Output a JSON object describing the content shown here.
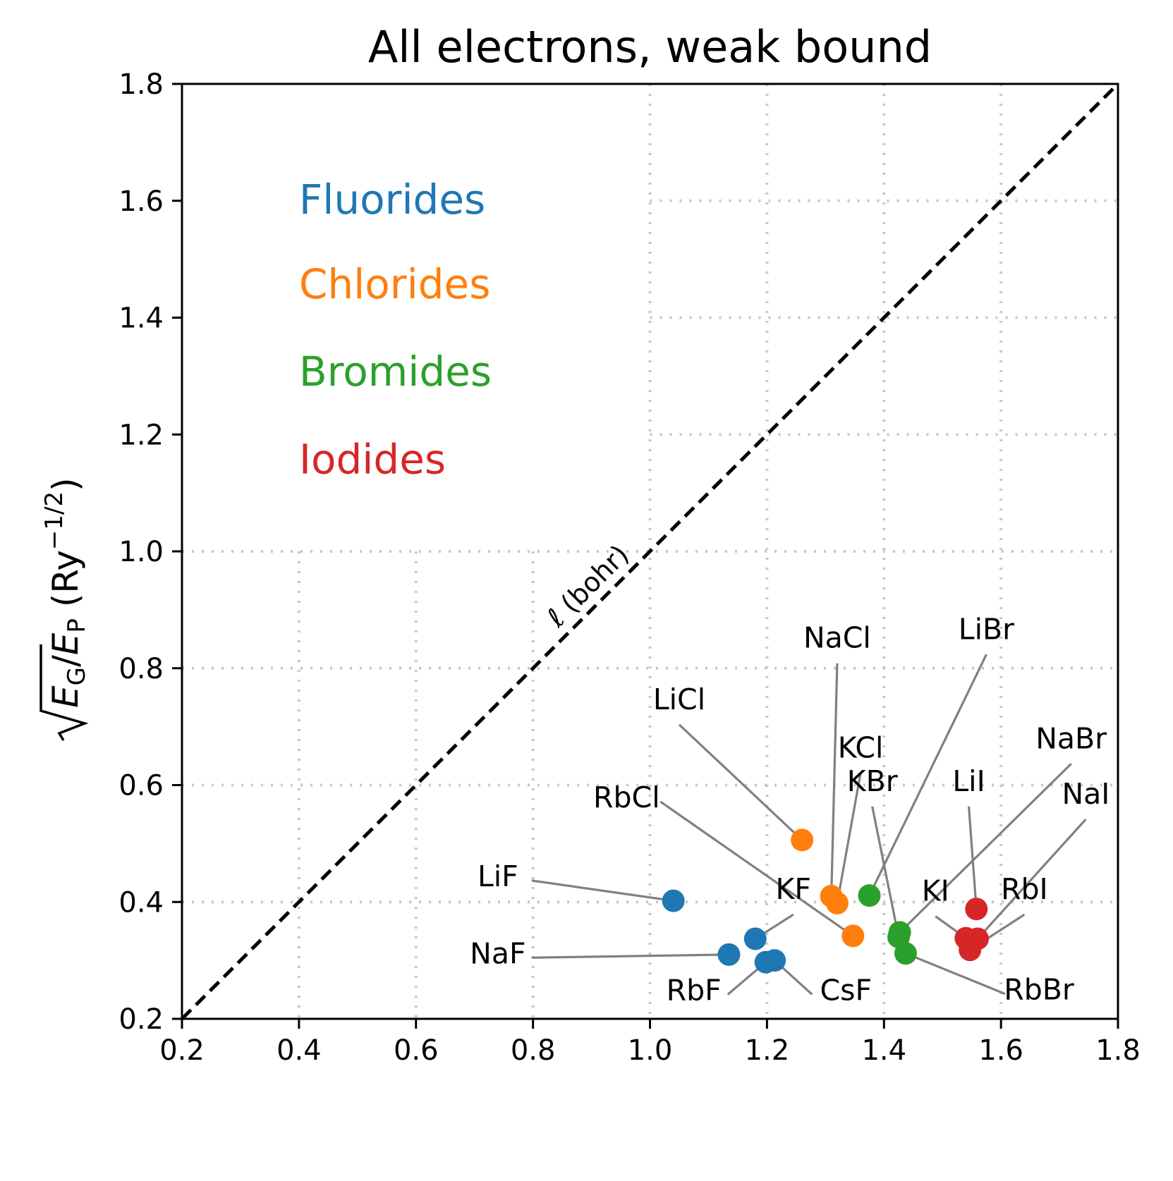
{
  "chart_data": {
    "type": "scatter",
    "title": "All electrons, weak bound",
    "xlabel": "",
    "ylabel": {
      "symbol_E": "E",
      "sub_G": "G",
      "slash": "/",
      "sub_P": "P",
      "unit_open": "(Ry",
      "unit_exp": "−1/2",
      "unit_close": ")"
    },
    "xlim": [
      0.2,
      1.8
    ],
    "ylim": [
      0.2,
      1.8
    ],
    "xticks": [
      "0.2",
      "0.4",
      "0.6",
      "0.8",
      "1.0",
      "1.2",
      "1.4",
      "1.6",
      "1.8"
    ],
    "yticks": [
      "0.2",
      "0.4",
      "0.6",
      "0.8",
      "1.0",
      "1.2",
      "1.4",
      "1.6",
      "1.8"
    ],
    "grid": "dotted, partial",
    "diagonal": {
      "from": [
        0.2,
        0.2
      ],
      "to": [
        1.8,
        1.8
      ],
      "style": "dashed",
      "label": "ℓ (bohr)"
    },
    "groups": [
      {
        "name": "Fluorides",
        "color": "#1f77b4"
      },
      {
        "name": "Chlorides",
        "color": "#ff7f0e"
      },
      {
        "name": "Bromides",
        "color": "#2ca02c"
      },
      {
        "name": "Iodides",
        "color": "#d62728"
      }
    ],
    "points": [
      {
        "label": "LiF",
        "group": "Fluorides",
        "x": 1.04,
        "y": 0.402,
        "label_x": 0.74,
        "label_y": 0.427
      },
      {
        "label": "NaF",
        "group": "Fluorides",
        "x": 1.135,
        "y": 0.31,
        "label_x": 0.74,
        "label_y": 0.295
      },
      {
        "label": "KF",
        "group": "Fluorides",
        "x": 1.18,
        "y": 0.337,
        "label_x": 1.245,
        "label_y": 0.405
      },
      {
        "label": "RbF",
        "group": "Fluorides",
        "x": 1.198,
        "y": 0.297,
        "label_x": 1.075,
        "label_y": 0.232
      },
      {
        "label": "CsF",
        "group": "Fluorides",
        "x": 1.213,
        "y": 0.3,
        "label_x": 1.335,
        "label_y": 0.232
      },
      {
        "label": "LiCl",
        "group": "Chlorides",
        "x": 1.26,
        "y": 0.506,
        "label_x": 1.05,
        "label_y": 0.73
      },
      {
        "label": "NaCl",
        "group": "Chlorides",
        "x": 1.31,
        "y": 0.41,
        "label_x": 1.32,
        "label_y": 0.835
      },
      {
        "label": "KCl",
        "group": "Chlorides",
        "x": 1.32,
        "y": 0.398,
        "label_x": 1.36,
        "label_y": 0.647
      },
      {
        "label": "RbCl",
        "group": "Chlorides",
        "x": 1.347,
        "y": 0.342,
        "label_x": 0.96,
        "label_y": 0.562
      },
      {
        "label": "LiBr",
        "group": "Bromides",
        "x": 1.375,
        "y": 0.411,
        "label_x": 1.575,
        "label_y": 0.85
      },
      {
        "label": "NaBr",
        "group": "Bromides",
        "x": 1.427,
        "y": 0.348,
        "label_x": 1.72,
        "label_y": 0.663
      },
      {
        "label": "KBr",
        "group": "Bromides",
        "x": 1.425,
        "y": 0.34,
        "label_x": 1.38,
        "label_y": 0.59
      },
      {
        "label": "RbBr",
        "group": "Bromides",
        "x": 1.437,
        "y": 0.312,
        "label_x": 1.665,
        "label_y": 0.233
      },
      {
        "label": "LiI",
        "group": "Iodides",
        "x": 1.558,
        "y": 0.388,
        "label_x": 1.545,
        "label_y": 0.59
      },
      {
        "label": "NaI",
        "group": "Iodides",
        "x": 1.56,
        "y": 0.337,
        "label_x": 1.745,
        "label_y": 0.568
      },
      {
        "label": "KI",
        "group": "Iodides",
        "x": 1.54,
        "y": 0.338,
        "label_x": 1.488,
        "label_y": 0.402
      },
      {
        "label": "RbI",
        "group": "Iodides",
        "x": 1.547,
        "y": 0.318,
        "label_x": 1.64,
        "label_y": 0.405
      }
    ]
  }
}
